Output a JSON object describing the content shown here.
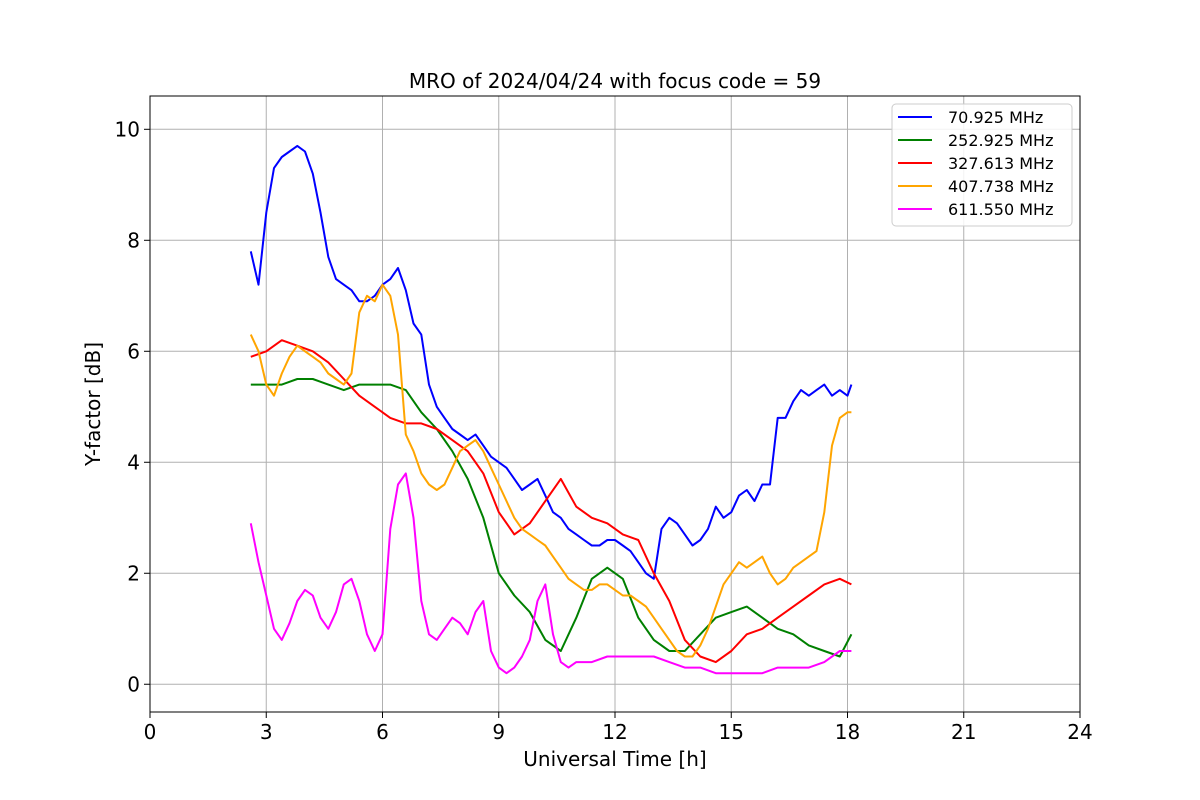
{
  "chart_data": {
    "type": "line",
    "title": "MRO of 2024/04/24 with focus code = 59",
    "xlabel": "Universal Time [h]",
    "ylabel": "Y-factor [dB]",
    "xlim": [
      0,
      24
    ],
    "ylim": [
      -0.5,
      10.6
    ],
    "xticks": [
      0,
      3,
      6,
      9,
      12,
      15,
      18,
      21,
      24
    ],
    "yticks": [
      0,
      2,
      4,
      6,
      8,
      10
    ],
    "grid": true,
    "legend_position": "top-right",
    "series": [
      {
        "name": " 70.925 MHz",
        "color": "#0000ff",
        "x": [
          2.6,
          2.8,
          3.0,
          3.2,
          3.4,
          3.6,
          3.8,
          4.0,
          4.2,
          4.4,
          4.6,
          4.8,
          5.0,
          5.2,
          5.4,
          5.6,
          5.8,
          6.0,
          6.2,
          6.4,
          6.6,
          6.8,
          7.0,
          7.2,
          7.4,
          7.6,
          7.8,
          8.0,
          8.2,
          8.4,
          8.6,
          8.8,
          9.0,
          9.2,
          9.4,
          9.6,
          9.8,
          10.0,
          10.2,
          10.4,
          10.6,
          10.8,
          11.0,
          11.2,
          11.4,
          11.6,
          11.8,
          12.0,
          12.2,
          12.4,
          12.6,
          12.8,
          13.0,
          13.2,
          13.4,
          13.6,
          13.8,
          14.0,
          14.2,
          14.4,
          14.6,
          14.8,
          15.0,
          15.2,
          15.4,
          15.6,
          15.8,
          16.0,
          16.2,
          16.4,
          16.6,
          16.8,
          17.0,
          17.2,
          17.4,
          17.6,
          17.8,
          18.0,
          18.1
        ],
        "y": [
          7.8,
          7.2,
          8.5,
          9.3,
          9.5,
          9.6,
          9.7,
          9.6,
          9.2,
          8.5,
          7.7,
          7.3,
          7.2,
          7.1,
          6.9,
          6.9,
          7.0,
          7.2,
          7.3,
          7.5,
          7.1,
          6.5,
          6.3,
          5.4,
          5.0,
          4.8,
          4.6,
          4.5,
          4.4,
          4.5,
          4.3,
          4.1,
          4.0,
          3.9,
          3.7,
          3.5,
          3.6,
          3.7,
          3.4,
          3.1,
          3.0,
          2.8,
          2.7,
          2.6,
          2.5,
          2.5,
          2.6,
          2.6,
          2.5,
          2.4,
          2.2,
          2.0,
          1.9,
          2.8,
          3.0,
          2.9,
          2.7,
          2.5,
          2.6,
          2.8,
          3.2,
          3.0,
          3.1,
          3.4,
          3.5,
          3.3,
          3.6,
          3.6,
          4.8,
          4.8,
          5.1,
          5.3,
          5.2,
          5.3,
          5.4,
          5.2,
          5.3,
          5.2,
          5.4
        ]
      },
      {
        "name": "252.925 MHz",
        "color": "#008000",
        "x": [
          2.6,
          3.0,
          3.4,
          3.8,
          4.2,
          4.6,
          5.0,
          5.4,
          5.8,
          6.2,
          6.6,
          7.0,
          7.4,
          7.8,
          8.2,
          8.6,
          9.0,
          9.4,
          9.8,
          10.2,
          10.6,
          11.0,
          11.4,
          11.8,
          12.2,
          12.6,
          13.0,
          13.4,
          13.8,
          14.2,
          14.6,
          15.0,
          15.4,
          15.8,
          16.2,
          16.6,
          17.0,
          17.4,
          17.8,
          18.1
        ],
        "y": [
          5.4,
          5.4,
          5.4,
          5.5,
          5.5,
          5.4,
          5.3,
          5.4,
          5.4,
          5.4,
          5.3,
          4.9,
          4.6,
          4.2,
          3.7,
          3.0,
          2.0,
          1.6,
          1.3,
          0.8,
          0.6,
          1.2,
          1.9,
          2.1,
          1.9,
          1.2,
          0.8,
          0.6,
          0.6,
          0.9,
          1.2,
          1.3,
          1.4,
          1.2,
          1.0,
          0.9,
          0.7,
          0.6,
          0.5,
          0.9
        ]
      },
      {
        "name": "327.613 MHz",
        "color": "#ff0000",
        "x": [
          2.6,
          3.0,
          3.4,
          3.8,
          4.2,
          4.6,
          5.0,
          5.4,
          5.8,
          6.2,
          6.6,
          7.0,
          7.4,
          7.8,
          8.2,
          8.6,
          9.0,
          9.4,
          9.8,
          10.2,
          10.6,
          11.0,
          11.4,
          11.8,
          12.2,
          12.6,
          13.0,
          13.4,
          13.8,
          14.2,
          14.6,
          15.0,
          15.4,
          15.8,
          16.2,
          16.6,
          17.0,
          17.4,
          17.8,
          18.1
        ],
        "y": [
          5.9,
          6.0,
          6.2,
          6.1,
          6.0,
          5.8,
          5.5,
          5.2,
          5.0,
          4.8,
          4.7,
          4.7,
          4.6,
          4.4,
          4.2,
          3.8,
          3.1,
          2.7,
          2.9,
          3.3,
          3.7,
          3.2,
          3.0,
          2.9,
          2.7,
          2.6,
          2.0,
          1.5,
          0.8,
          0.5,
          0.4,
          0.6,
          0.9,
          1.0,
          1.2,
          1.4,
          1.6,
          1.8,
          1.9,
          1.8
        ]
      },
      {
        "name": "407.738 MHz",
        "color": "#ffa500",
        "x": [
          2.6,
          2.8,
          3.0,
          3.2,
          3.4,
          3.6,
          3.8,
          4.0,
          4.2,
          4.4,
          4.6,
          4.8,
          5.0,
          5.2,
          5.4,
          5.6,
          5.8,
          6.0,
          6.2,
          6.4,
          6.6,
          6.8,
          7.0,
          7.2,
          7.4,
          7.6,
          7.8,
          8.0,
          8.2,
          8.4,
          8.6,
          8.8,
          9.0,
          9.2,
          9.4,
          9.6,
          9.8,
          10.0,
          10.2,
          10.4,
          10.6,
          10.8,
          11.0,
          11.2,
          11.4,
          11.6,
          11.8,
          12.0,
          12.2,
          12.4,
          12.6,
          12.8,
          13.0,
          13.2,
          13.4,
          13.6,
          13.8,
          14.0,
          14.2,
          14.4,
          14.6,
          14.8,
          15.0,
          15.2,
          15.4,
          15.6,
          15.8,
          16.0,
          16.2,
          16.4,
          16.6,
          16.8,
          17.0,
          17.2,
          17.4,
          17.6,
          17.8,
          18.0,
          18.1
        ],
        "y": [
          6.3,
          6.0,
          5.4,
          5.2,
          5.6,
          5.9,
          6.1,
          6.0,
          5.9,
          5.8,
          5.6,
          5.5,
          5.4,
          5.6,
          6.7,
          7.0,
          6.9,
          7.2,
          7.0,
          6.3,
          4.5,
          4.2,
          3.8,
          3.6,
          3.5,
          3.6,
          3.9,
          4.2,
          4.3,
          4.4,
          4.2,
          3.9,
          3.6,
          3.3,
          3.0,
          2.8,
          2.7,
          2.6,
          2.5,
          2.3,
          2.1,
          1.9,
          1.8,
          1.7,
          1.7,
          1.8,
          1.8,
          1.7,
          1.6,
          1.6,
          1.5,
          1.4,
          1.2,
          1.0,
          0.8,
          0.6,
          0.5,
          0.5,
          0.7,
          1.0,
          1.4,
          1.8,
          2.0,
          2.2,
          2.1,
          2.2,
          2.3,
          2.0,
          1.8,
          1.9,
          2.1,
          2.2,
          2.3,
          2.4,
          3.1,
          4.3,
          4.8,
          4.9,
          4.9
        ]
      },
      {
        "name": "611.550 MHz",
        "color": "#ff00ff",
        "x": [
          2.6,
          2.8,
          3.0,
          3.2,
          3.4,
          3.6,
          3.8,
          4.0,
          4.2,
          4.4,
          4.6,
          4.8,
          5.0,
          5.2,
          5.4,
          5.6,
          5.8,
          6.0,
          6.2,
          6.4,
          6.6,
          6.8,
          7.0,
          7.2,
          7.4,
          7.6,
          7.8,
          8.0,
          8.2,
          8.4,
          8.6,
          8.8,
          9.0,
          9.2,
          9.4,
          9.6,
          9.8,
          10.0,
          10.2,
          10.4,
          10.6,
          10.8,
          11.0,
          11.4,
          11.8,
          12.2,
          12.6,
          13.0,
          13.4,
          13.8,
          14.2,
          14.6,
          15.0,
          15.4,
          15.8,
          16.2,
          16.6,
          17.0,
          17.4,
          17.8,
          18.1
        ],
        "y": [
          2.9,
          2.2,
          1.6,
          1.0,
          0.8,
          1.1,
          1.5,
          1.7,
          1.6,
          1.2,
          1.0,
          1.3,
          1.8,
          1.9,
          1.5,
          0.9,
          0.6,
          0.9,
          2.8,
          3.6,
          3.8,
          3.0,
          1.5,
          0.9,
          0.8,
          1.0,
          1.2,
          1.1,
          0.9,
          1.3,
          1.5,
          0.6,
          0.3,
          0.2,
          0.3,
          0.5,
          0.8,
          1.5,
          1.8,
          0.9,
          0.4,
          0.3,
          0.4,
          0.4,
          0.5,
          0.5,
          0.5,
          0.5,
          0.4,
          0.3,
          0.3,
          0.2,
          0.2,
          0.2,
          0.2,
          0.3,
          0.3,
          0.3,
          0.4,
          0.6,
          0.6
        ]
      }
    ]
  }
}
